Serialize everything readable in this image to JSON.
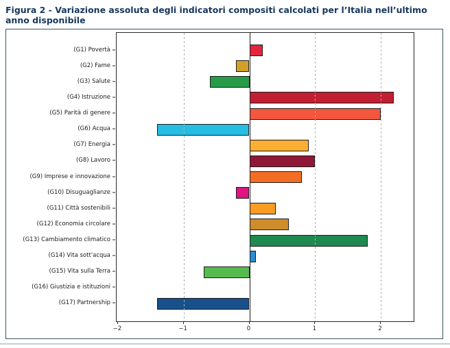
{
  "title": "Figura 2 - Variazione assoluta degli indicatori compositi calcolati per l’Italia nell’ultimo anno disponibile",
  "colors": {
    "title_text": "#17375D",
    "chart_border": "#3A5560",
    "axis": "#262626",
    "grid": "#A9AEB3",
    "zero_line": "#1A1A1A",
    "bar_outline": "#1A1A1A",
    "bottom_divider": "#C4CFD6"
  },
  "chart_data": {
    "type": "bar",
    "orientation": "horizontal",
    "title": "Figura 2 - Variazione assoluta degli indicatori compositi calcolati per l’Italia nell’ultimo anno disponibile",
    "categories": [
      "(G1) Povertà",
      "(G2) Fame",
      "(G3) Salute",
      "(G4) Istruzione",
      "(G5) Parità di genere",
      "(G6) Acqua",
      "(G7) Energia",
      "(G8) Lavoro",
      "(G9) Imprese e innovazione",
      "(G10) Disuguaglianze",
      "(G11) Città sostenibili",
      "(G12) Economia circolare",
      "(G13) Cambiamento climatico",
      "(G14) Vita sott'acqua",
      "(G15) Vita sulla Terra",
      "(G16) Giustizia e istituzioni",
      "(G17) Partnership"
    ],
    "values": [
      0.2,
      -0.2,
      -0.6,
      2.2,
      2.0,
      -1.4,
      0.9,
      1.0,
      0.8,
      -0.2,
      0.4,
      0.6,
      1.8,
      0.1,
      -0.7,
      0.0,
      -1.4
    ],
    "bar_colors": [
      "#E5243B",
      "#D2A02A",
      "#279B48",
      "#C31F33",
      "#F4573E",
      "#26BDE2",
      "#FBB034",
      "#8F1838",
      "#F36D25",
      "#E01483",
      "#F99D26",
      "#CF8D2A",
      "#1F8A4F",
      "#2B8CCE",
      "#56BB4E",
      "#00689D",
      "#18508C"
    ],
    "x_ticks": [
      "−2",
      "−1",
      "0",
      "1",
      "2"
    ],
    "x_tick_values": [
      -2,
      -1,
      0,
      1,
      2
    ],
    "xlim": [
      -2.02,
      2.5
    ],
    "xlabel": "",
    "ylabel": "",
    "grid": "dashed-vertical-over-bars",
    "zero_line": true,
    "legend": "none"
  }
}
